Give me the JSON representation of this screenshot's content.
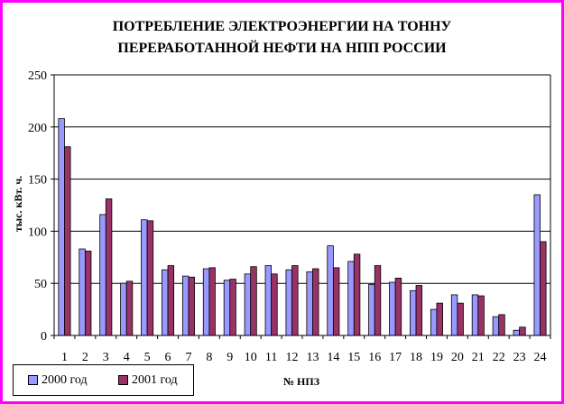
{
  "title_line1": "ПОТРЕБЛЕНИЕ ЭЛЕКТРОЭНЕРГИИ НА ТОННУ",
  "title_line2": "ПЕРЕРАБОТАННОЙ НЕФТИ НА НПП РОССИИ",
  "colors": {
    "border": "#ff00ff",
    "series_2000": "#9999ff",
    "series_2001": "#993366"
  },
  "chart_data": {
    "type": "bar",
    "title": "ПОТРЕБЛЕНИЕ ЭЛЕКТРОЭНЕРГИИ НА ТОННУ ПЕРЕРАБОТАННОЙ НЕФТИ НА НПП РОССИИ",
    "xlabel": "№ НПЗ",
    "ylabel": "тыс. кВт. ч.",
    "ylim": [
      0,
      250
    ],
    "yticks": [
      "0",
      "50",
      "100",
      "150",
      "200",
      "250"
    ],
    "grid": true,
    "legend": "bottom-left",
    "categories": [
      "1",
      "2",
      "3",
      "4",
      "5",
      "6",
      "7",
      "8",
      "9",
      "10",
      "11",
      "12",
      "13",
      "14",
      "15",
      "16",
      "17",
      "18",
      "19",
      "20",
      "21",
      "22",
      "23",
      "24"
    ],
    "series": [
      {
        "name": "2000 год",
        "values": [
          208,
          83,
          116,
          50,
          111,
          63,
          57,
          64,
          53,
          59,
          67,
          63,
          61,
          86,
          71,
          49,
          51,
          43,
          25,
          39,
          39,
          18,
          5,
          135
        ]
      },
      {
        "name": "2001 год",
        "values": [
          181,
          81,
          131,
          52,
          110,
          67,
          56,
          65,
          54,
          66,
          59,
          67,
          64,
          65,
          78,
          67,
          55,
          48,
          31,
          31,
          38,
          20,
          8,
          90
        ]
      }
    ]
  }
}
